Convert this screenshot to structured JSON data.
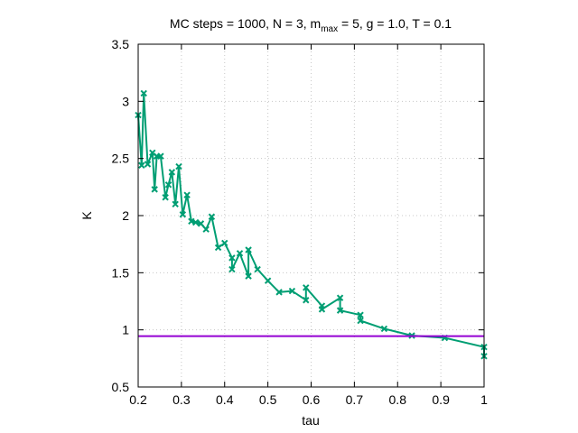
{
  "chart_data": {
    "type": "line",
    "title_main": "MC steps = 1000, N = 3, m",
    "title_sub": "max",
    "title_rest": " = 5, g = 1.0, T = 0.1",
    "xlabel": "tau",
    "ylabel": "K",
    "xlim": [
      0.2,
      1.0
    ],
    "ylim": [
      0.5,
      3.5
    ],
    "x_ticks": [
      "0.2",
      "0.3",
      "0.4",
      "0.5",
      "0.6",
      "0.7",
      "0.8",
      "0.9",
      "1"
    ],
    "y_ticks": [
      "0.5",
      "1",
      "1.5",
      "2",
      "2.5",
      "3",
      "3.5"
    ],
    "grid": true,
    "series": [
      {
        "color": "#009e73",
        "marker": "x",
        "points": [
          [
            0.2,
            2.88
          ],
          [
            0.208,
            2.44
          ],
          [
            0.213,
            3.07
          ],
          [
            0.222,
            2.45
          ],
          [
            0.233,
            2.55
          ],
          [
            0.238,
            2.23
          ],
          [
            0.243,
            2.52
          ],
          [
            0.252,
            2.52
          ],
          [
            0.263,
            2.16
          ],
          [
            0.27,
            2.27
          ],
          [
            0.278,
            2.38
          ],
          [
            0.286,
            2.1
          ],
          [
            0.294,
            2.43
          ],
          [
            0.303,
            2.01
          ],
          [
            0.313,
            2.18
          ],
          [
            0.323,
            1.95
          ],
          [
            0.333,
            1.94
          ],
          [
            0.345,
            1.93
          ],
          [
            0.357,
            1.88
          ],
          [
            0.37,
            1.99
          ],
          [
            0.385,
            1.72
          ],
          [
            0.4,
            1.76
          ],
          [
            0.417,
            1.63
          ],
          [
            0.417,
            1.53
          ],
          [
            0.435,
            1.67
          ],
          [
            0.455,
            1.47
          ],
          [
            0.455,
            1.7
          ],
          [
            0.476,
            1.53
          ],
          [
            0.5,
            1.43
          ],
          [
            0.526,
            1.33
          ],
          [
            0.556,
            1.34
          ],
          [
            0.588,
            1.26
          ],
          [
            0.588,
            1.37
          ],
          [
            0.625,
            1.21
          ],
          [
            0.625,
            1.18
          ],
          [
            0.667,
            1.28
          ],
          [
            0.667,
            1.17
          ],
          [
            0.714,
            1.13
          ],
          [
            0.714,
            1.08
          ],
          [
            0.769,
            1.01
          ],
          [
            0.833,
            0.95
          ],
          [
            0.909,
            0.93
          ],
          [
            1.0,
            0.85
          ],
          [
            1.0,
            0.77
          ]
        ]
      },
      {
        "color": "#9400d3",
        "marker": "none",
        "points": [
          [
            0.2,
            0.945
          ],
          [
            1.0,
            0.945
          ]
        ]
      }
    ]
  }
}
